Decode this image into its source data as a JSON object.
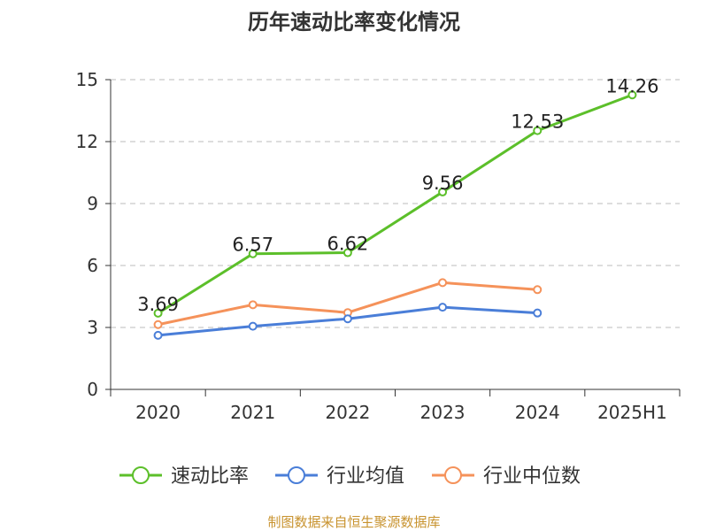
{
  "chart_data": {
    "type": "line",
    "title": "历年速动比率变化情况",
    "categories": [
      "2020",
      "2021",
      "2022",
      "2023",
      "2024",
      "2025H1"
    ],
    "y_ticks": [
      "0",
      "3",
      "6",
      "9",
      "12",
      "15"
    ],
    "ylim": [
      0,
      15
    ],
    "grid": true,
    "legend_position": "bottom",
    "series": [
      {
        "name": "速动比率",
        "color": "#5cbf2a",
        "values": [
          3.69,
          6.57,
          6.62,
          9.56,
          12.53,
          14.26
        ],
        "labels": [
          "3.69",
          "6.57",
          "6.62",
          "9.56",
          "12.53",
          "14.26"
        ]
      },
      {
        "name": "行业均值",
        "color": "#4a7ed8",
        "values": [
          2.62,
          3.06,
          3.42,
          3.98,
          3.7,
          null
        ],
        "labels": []
      },
      {
        "name": "行业中位数",
        "color": "#f5925a",
        "values": [
          3.14,
          4.1,
          3.72,
          5.17,
          4.83,
          null
        ],
        "labels": []
      }
    ]
  },
  "source_note": "制图数据来自恒生聚源数据库",
  "colors": {
    "source_note": "#c8932f",
    "axis": "#333333",
    "grid": "#bbbbbb"
  }
}
